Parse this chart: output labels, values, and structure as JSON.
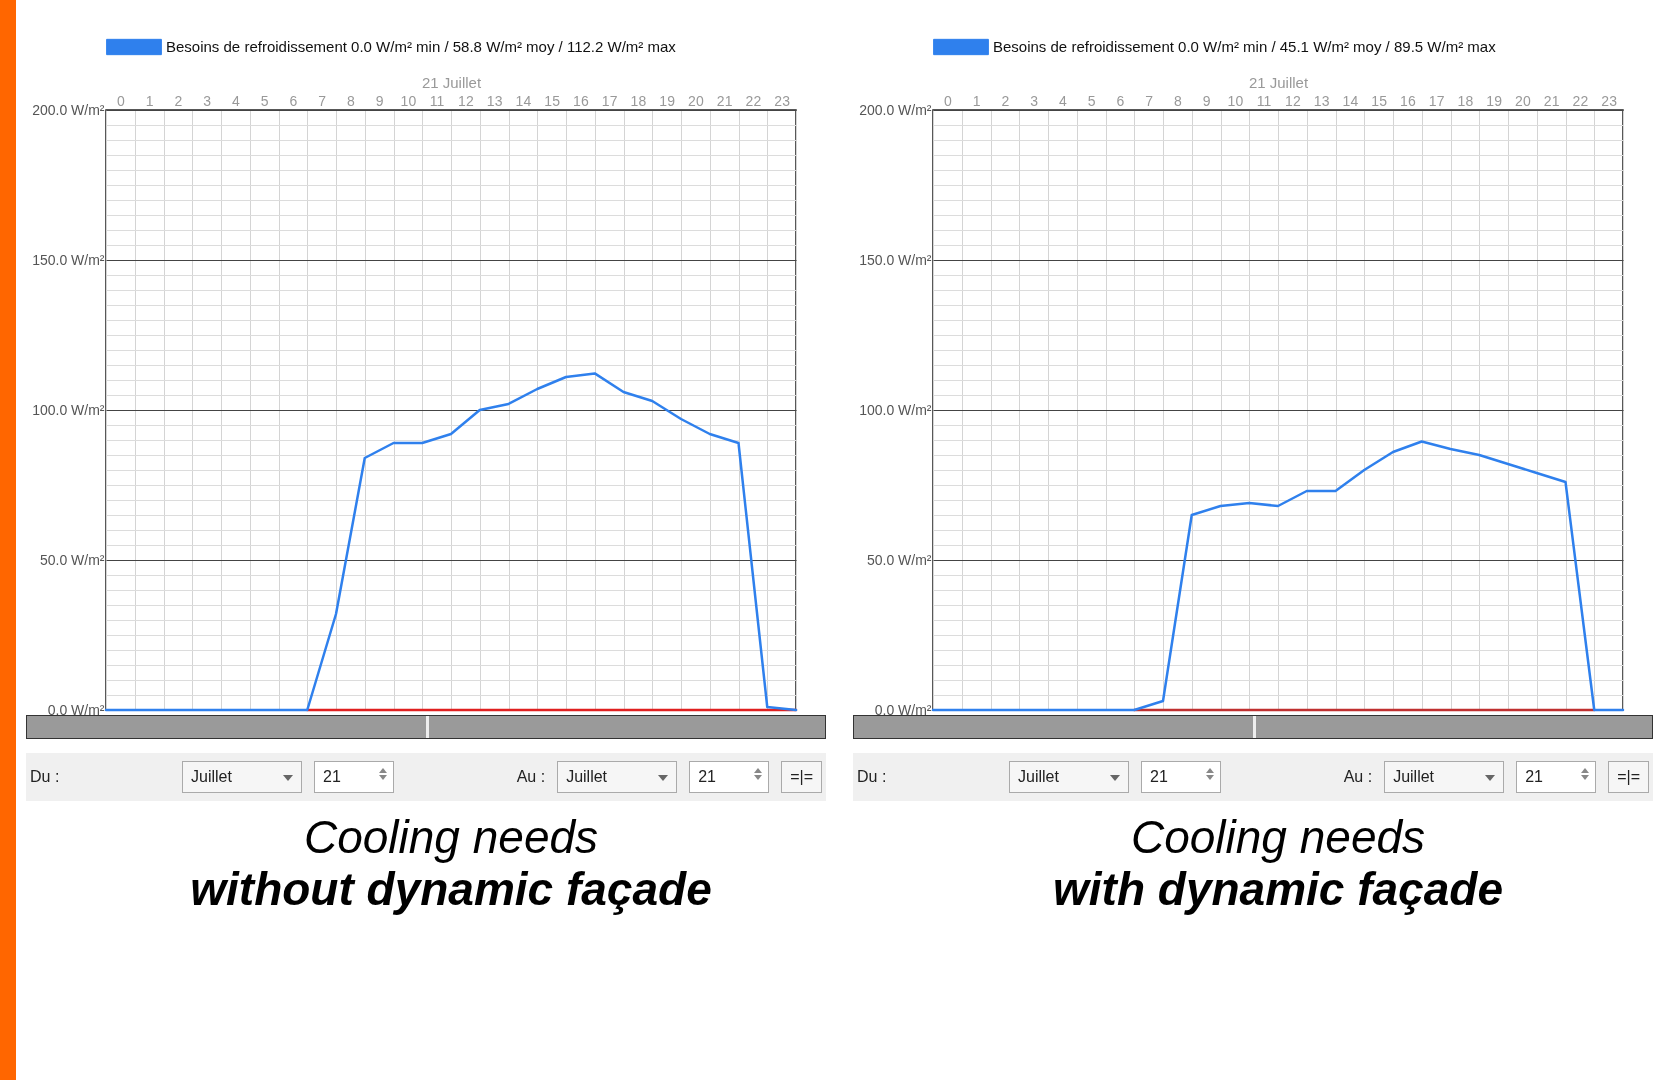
{
  "chart_data": [
    {
      "type": "line",
      "title": "Cooling needs",
      "subtitle": "without dynamic façade",
      "xlabel": "21 Juillet",
      "legend": "top",
      "grid": true,
      "x": [
        0,
        1,
        2,
        3,
        4,
        5,
        6,
        7,
        8,
        9,
        10,
        11,
        12,
        13,
        14,
        15,
        16,
        17,
        18,
        19,
        20,
        21,
        22,
        23,
        24
      ],
      "xlim": [
        0,
        24
      ],
      "xticks": [
        {
          "value": 0,
          "label": null
        },
        {
          "value": 0.5,
          "label": "0"
        },
        {
          "value": 1,
          "label": null
        },
        {
          "value": 1.5,
          "label": "1"
        },
        {
          "value": 2,
          "label": null
        },
        {
          "value": 2.5,
          "label": "2"
        },
        {
          "value": 3,
          "label": null
        },
        {
          "value": 3.5,
          "label": "3"
        },
        {
          "value": 4,
          "label": null
        },
        {
          "value": 4.5,
          "label": "4"
        },
        {
          "value": 5,
          "label": null
        },
        {
          "value": 5.5,
          "label": "5"
        },
        {
          "value": 6,
          "label": null
        },
        {
          "value": 6.5,
          "label": "6"
        },
        {
          "value": 7,
          "label": null
        },
        {
          "value": 7.5,
          "label": "7"
        },
        {
          "value": 8,
          "label": null
        },
        {
          "value": 8.5,
          "label": "8"
        },
        {
          "value": 9,
          "label": null
        },
        {
          "value": 9.5,
          "label": "9"
        },
        {
          "value": 10,
          "label": null
        },
        {
          "value": 10.5,
          "label": "10"
        },
        {
          "value": 11,
          "label": null
        },
        {
          "value": 11.5,
          "label": "11"
        },
        {
          "value": 12,
          "label": null
        },
        {
          "value": 12.5,
          "label": "12"
        },
        {
          "value": 13,
          "label": null
        },
        {
          "value": 13.5,
          "label": "13"
        },
        {
          "value": 14,
          "label": null
        },
        {
          "value": 14.5,
          "label": "14"
        },
        {
          "value": 15,
          "label": null
        },
        {
          "value": 15.5,
          "label": "15"
        },
        {
          "value": 16,
          "label": null
        },
        {
          "value": 16.5,
          "label": "16"
        },
        {
          "value": 17,
          "label": null
        },
        {
          "value": 17.5,
          "label": "17"
        },
        {
          "value": 18,
          "label": null
        },
        {
          "value": 18.5,
          "label": "18"
        },
        {
          "value": 19,
          "label": null
        },
        {
          "value": 19.5,
          "label": "19"
        },
        {
          "value": 20,
          "label": null
        },
        {
          "value": 20.5,
          "label": "20"
        },
        {
          "value": 21,
          "label": null
        },
        {
          "value": 21.5,
          "label": "21"
        },
        {
          "value": 22,
          "label": null
        },
        {
          "value": 22.5,
          "label": "22"
        },
        {
          "value": 23,
          "label": null
        },
        {
          "value": 23.5,
          "label": "23"
        },
        {
          "value": 24,
          "label": null
        }
      ],
      "ylim": [
        0,
        200
      ],
      "yticks": [
        {
          "value": 0,
          "label": "0.0 W/m²"
        },
        {
          "value": 5,
          "label": null
        },
        {
          "value": 10,
          "label": null
        },
        {
          "value": 15,
          "label": null
        },
        {
          "value": 20,
          "label": null
        },
        {
          "value": 25,
          "label": null
        },
        {
          "value": 30,
          "label": null
        },
        {
          "value": 35,
          "label": null
        },
        {
          "value": 40,
          "label": null
        },
        {
          "value": 45,
          "label": null
        },
        {
          "value": 50,
          "label": "50.0 W/m²"
        },
        {
          "value": 55,
          "label": null
        },
        {
          "value": 60,
          "label": null
        },
        {
          "value": 65,
          "label": null
        },
        {
          "value": 70,
          "label": null
        },
        {
          "value": 75,
          "label": null
        },
        {
          "value": 80,
          "label": null
        },
        {
          "value": 85,
          "label": null
        },
        {
          "value": 90,
          "label": null
        },
        {
          "value": 95,
          "label": null
        },
        {
          "value": 100,
          "label": "100.0 W/m²"
        },
        {
          "value": 105,
          "label": null
        },
        {
          "value": 110,
          "label": null
        },
        {
          "value": 115,
          "label": null
        },
        {
          "value": 120,
          "label": null
        },
        {
          "value": 125,
          "label": null
        },
        {
          "value": 130,
          "label": null
        },
        {
          "value": 135,
          "label": null
        },
        {
          "value": 140,
          "label": null
        },
        {
          "value": 145,
          "label": null
        },
        {
          "value": 150,
          "label": "150.0 W/m²"
        },
        {
          "value": 155,
          "label": null
        },
        {
          "value": 160,
          "label": null
        },
        {
          "value": 165,
          "label": null
        },
        {
          "value": 170,
          "label": null
        },
        {
          "value": 175,
          "label": null
        },
        {
          "value": 180,
          "label": null
        },
        {
          "value": 185,
          "label": null
        },
        {
          "value": 190,
          "label": null
        },
        {
          "value": 195,
          "label": null
        },
        {
          "value": 200,
          "label": "200.0 W/m²"
        }
      ],
      "series": [
        {
          "color": "#e02020",
          "values": [
            null,
            null,
            null,
            null,
            null,
            null,
            null,
            0,
            0,
            0,
            0,
            0,
            0,
            0,
            0,
            0,
            0,
            0,
            0,
            0,
            0,
            0,
            0,
            0,
            0
          ]
        },
        {
          "name": "Besoins de refroidissement 0.0 W/m² min / 58.8 W/m² moy / 112.2 W/m² max",
          "color": "#2f80ed",
          "values": [
            0,
            0,
            0,
            0,
            0,
            0,
            0,
            0,
            32,
            84,
            89,
            89,
            92,
            100,
            102,
            107,
            111,
            112.2,
            106,
            103,
            97,
            92,
            89,
            1,
            0
          ]
        }
      ],
      "annotations": [
        "Du :",
        "Juillet",
        "21",
        "Au :",
        "Juillet",
        "21",
        "=|="
      ]
    },
    {
      "type": "line",
      "title": "Cooling needs",
      "subtitle": "with dynamic façade",
      "xlabel": "21 Juillet",
      "legend": "top",
      "grid": true,
      "x": [
        0,
        1,
        2,
        3,
        4,
        5,
        6,
        7,
        8,
        9,
        10,
        11,
        12,
        13,
        14,
        15,
        16,
        17,
        18,
        19,
        20,
        21,
        22,
        23,
        24
      ],
      "xlim": [
        0,
        24
      ],
      "xticks": [
        {
          "value": 0,
          "label": null
        },
        {
          "value": 0.5,
          "label": "0"
        },
        {
          "value": 1,
          "label": null
        },
        {
          "value": 1.5,
          "label": "1"
        },
        {
          "value": 2,
          "label": null
        },
        {
          "value": 2.5,
          "label": "2"
        },
        {
          "value": 3,
          "label": null
        },
        {
          "value": 3.5,
          "label": "3"
        },
        {
          "value": 4,
          "label": null
        },
        {
          "value": 4.5,
          "label": "4"
        },
        {
          "value": 5,
          "label": null
        },
        {
          "value": 5.5,
          "label": "5"
        },
        {
          "value": 6,
          "label": null
        },
        {
          "value": 6.5,
          "label": "6"
        },
        {
          "value": 7,
          "label": null
        },
        {
          "value": 7.5,
          "label": "7"
        },
        {
          "value": 8,
          "label": null
        },
        {
          "value": 8.5,
          "label": "8"
        },
        {
          "value": 9,
          "label": null
        },
        {
          "value": 9.5,
          "label": "9"
        },
        {
          "value": 10,
          "label": null
        },
        {
          "value": 10.5,
          "label": "10"
        },
        {
          "value": 11,
          "label": null
        },
        {
          "value": 11.5,
          "label": "11"
        },
        {
          "value": 12,
          "label": null
        },
        {
          "value": 12.5,
          "label": "12"
        },
        {
          "value": 13,
          "label": null
        },
        {
          "value": 13.5,
          "label": "13"
        },
        {
          "value": 14,
          "label": null
        },
        {
          "value": 14.5,
          "label": "14"
        },
        {
          "value": 15,
          "label": null
        },
        {
          "value": 15.5,
          "label": "15"
        },
        {
          "value": 16,
          "label": null
        },
        {
          "value": 16.5,
          "label": "16"
        },
        {
          "value": 17,
          "label": null
        },
        {
          "value": 17.5,
          "label": "17"
        },
        {
          "value": 18,
          "label": null
        },
        {
          "value": 18.5,
          "label": "18"
        },
        {
          "value": 19,
          "label": null
        },
        {
          "value": 19.5,
          "label": "19"
        },
        {
          "value": 20,
          "label": null
        },
        {
          "value": 20.5,
          "label": "20"
        },
        {
          "value": 21,
          "label": null
        },
        {
          "value": 21.5,
          "label": "21"
        },
        {
          "value": 22,
          "label": null
        },
        {
          "value": 22.5,
          "label": "22"
        },
        {
          "value": 23,
          "label": null
        },
        {
          "value": 23.5,
          "label": "23"
        },
        {
          "value": 24,
          "label": null
        }
      ],
      "ylim": [
        0,
        200
      ],
      "yticks": [
        {
          "value": 0,
          "label": "0.0 W/m²"
        },
        {
          "value": 5,
          "label": null
        },
        {
          "value": 10,
          "label": null
        },
        {
          "value": 15,
          "label": null
        },
        {
          "value": 20,
          "label": null
        },
        {
          "value": 25,
          "label": null
        },
        {
          "value": 30,
          "label": null
        },
        {
          "value": 35,
          "label": null
        },
        {
          "value": 40,
          "label": null
        },
        {
          "value": 45,
          "label": null
        },
        {
          "value": 50,
          "label": "50.0 W/m²"
        },
        {
          "value": 55,
          "label": null
        },
        {
          "value": 60,
          "label": null
        },
        {
          "value": 65,
          "label": null
        },
        {
          "value": 70,
          "label": null
        },
        {
          "value": 75,
          "label": null
        },
        {
          "value": 80,
          "label": null
        },
        {
          "value": 85,
          "label": null
        },
        {
          "value": 90,
          "label": null
        },
        {
          "value": 95,
          "label": null
        },
        {
          "value": 100,
          "label": "100.0 W/m²"
        },
        {
          "value": 105,
          "label": null
        },
        {
          "value": 110,
          "label": null
        },
        {
          "value": 115,
          "label": null
        },
        {
          "value": 120,
          "label": null
        },
        {
          "value": 125,
          "label": null
        },
        {
          "value": 130,
          "label": null
        },
        {
          "value": 135,
          "label": null
        },
        {
          "value": 140,
          "label": null
        },
        {
          "value": 145,
          "label": null
        },
        {
          "value": 150,
          "label": "150.0 W/m²"
        },
        {
          "value": 155,
          "label": null
        },
        {
          "value": 160,
          "label": null
        },
        {
          "value": 165,
          "label": null
        },
        {
          "value": 170,
          "label": null
        },
        {
          "value": 175,
          "label": null
        },
        {
          "value": 180,
          "label": null
        },
        {
          "value": 185,
          "label": null
        },
        {
          "value": 190,
          "label": null
        },
        {
          "value": 195,
          "label": null
        },
        {
          "value": 200,
          "label": "200.0 W/m²"
        }
      ],
      "series": [
        {
          "color": "#c03030",
          "values": [
            null,
            null,
            null,
            null,
            null,
            null,
            null,
            0,
            0,
            0,
            0,
            0,
            0,
            0,
            0,
            0,
            0,
            0,
            0,
            0,
            0,
            0,
            0,
            0,
            null
          ]
        },
        {
          "name": "Besoins de refroidissement 0.0 W/m² min / 45.1 W/m² moy / 89.5 W/m² max",
          "color": "#2f80ed",
          "values": [
            0,
            0,
            0,
            0,
            0,
            0,
            0,
            0,
            3,
            65,
            68,
            69,
            68,
            73,
            73,
            80,
            86,
            89.5,
            87,
            85,
            82,
            79,
            76,
            0,
            0
          ]
        }
      ],
      "annotations": [
        "Du :",
        "Juillet",
        "21",
        "Au :",
        "Juillet",
        "21",
        "=|="
      ]
    }
  ]
}
